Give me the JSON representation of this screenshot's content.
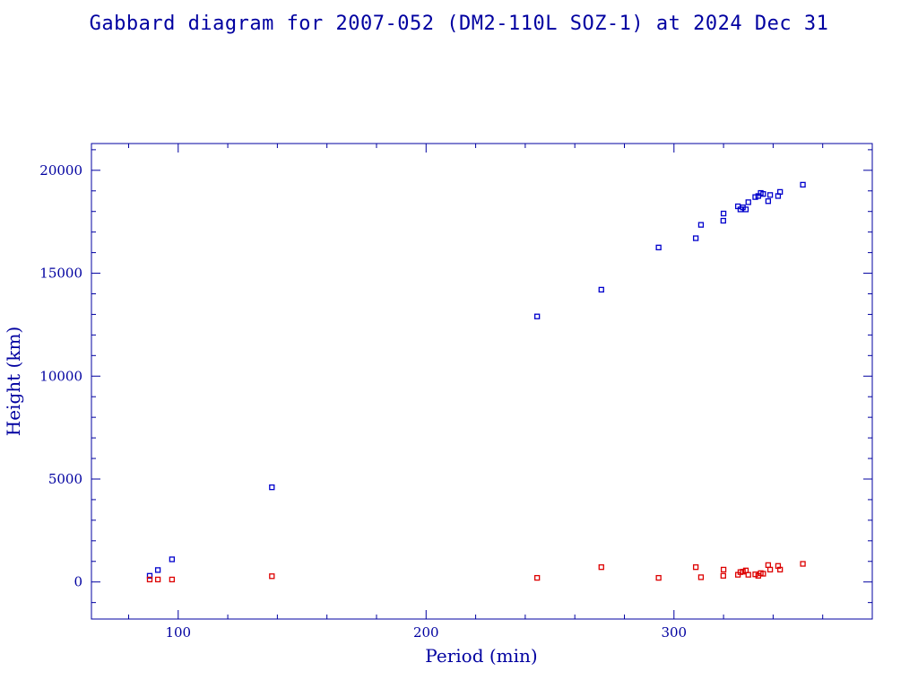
{
  "chart_data": {
    "type": "scatter",
    "title": "Gabbard diagram for 2007-052 (DM2-110L SOZ-1) at 2024 Dec 31",
    "xlabel": "Period (min)",
    "ylabel": "Height (km)",
    "xlim": [
      65,
      380
    ],
    "ylim": [
      -1800,
      21300
    ],
    "xticks": [
      100,
      200,
      300
    ],
    "yticks": [
      0,
      5000,
      10000,
      15000,
      20000
    ],
    "grid": false,
    "series": [
      {
        "color": "#0000cc",
        "points": [
          [
            88.5,
            300
          ],
          [
            91.8,
            580
          ],
          [
            97.5,
            1100
          ],
          [
            137.8,
            4600
          ],
          [
            244.8,
            12900
          ],
          [
            270.7,
            14200
          ],
          [
            293.8,
            16250
          ],
          [
            308.8,
            16700
          ],
          [
            310.9,
            17350
          ],
          [
            319.9,
            17550
          ],
          [
            320.0,
            17900
          ],
          [
            325.8,
            18250
          ],
          [
            326.8,
            18100
          ],
          [
            327.8,
            18200
          ],
          [
            329.0,
            18100
          ],
          [
            330.0,
            18450
          ],
          [
            332.8,
            18700
          ],
          [
            334.0,
            18750
          ],
          [
            335.0,
            18900
          ],
          [
            336.0,
            18850
          ],
          [
            338.0,
            18500
          ],
          [
            338.8,
            18800
          ],
          [
            342.0,
            18750
          ],
          [
            342.8,
            18950
          ],
          [
            352.0,
            19300
          ]
        ]
      },
      {
        "color": "#dd0000",
        "points": [
          [
            88.5,
            120
          ],
          [
            91.8,
            120
          ],
          [
            97.5,
            120
          ],
          [
            137.8,
            280
          ],
          [
            244.8,
            200
          ],
          [
            270.7,
            720
          ],
          [
            293.8,
            200
          ],
          [
            308.8,
            720
          ],
          [
            310.9,
            230
          ],
          [
            319.9,
            300
          ],
          [
            320.0,
            600
          ],
          [
            325.8,
            350
          ],
          [
            326.8,
            480
          ],
          [
            327.8,
            500
          ],
          [
            329.0,
            560
          ],
          [
            330.0,
            350
          ],
          [
            332.8,
            370
          ],
          [
            334.0,
            300
          ],
          [
            335.0,
            430
          ],
          [
            336.0,
            400
          ],
          [
            338.0,
            820
          ],
          [
            338.8,
            600
          ],
          [
            342.0,
            780
          ],
          [
            342.8,
            600
          ],
          [
            352.0,
            880
          ]
        ]
      }
    ]
  },
  "colors": {
    "axis": "#0000a0"
  }
}
